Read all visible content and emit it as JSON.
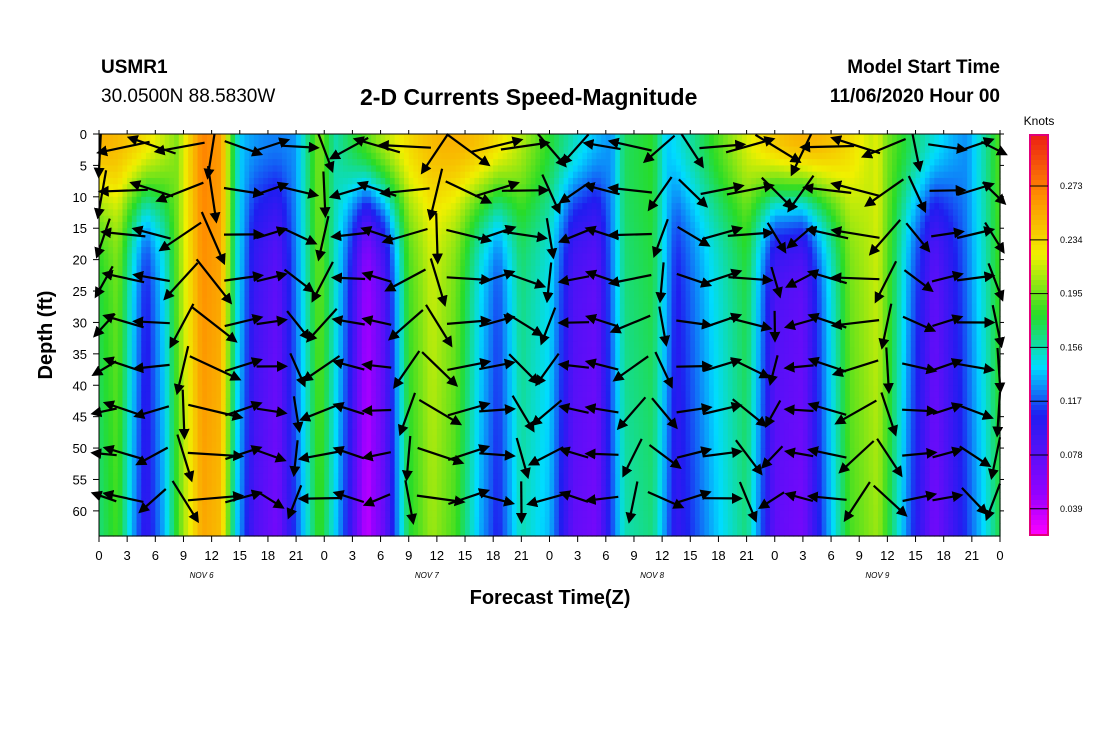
{
  "header": {
    "station_id": "USMR1",
    "coordinates": "30.0500N 88.5830W",
    "title": "2-D Currents Speed-Magnitude",
    "start_label": "Model Start Time",
    "start_value": "11/06/2020 Hour 00"
  },
  "colors": {
    "arrow": "#000000",
    "frame": "#000000",
    "colorbar_frame": "#e0007a"
  },
  "chart_data": {
    "type": "heatmap",
    "title": "2-D Currents Speed-Magnitude",
    "xlabel": "Forecast Time(Z)",
    "ylabel": "Depth (ft)",
    "x_tick_labels": [
      "0",
      "3",
      "6",
      "9",
      "12",
      "15",
      "18",
      "21",
      "0",
      "3",
      "6",
      "9",
      "12",
      "15",
      "18",
      "21",
      "0",
      "3",
      "6",
      "9",
      "12",
      "15",
      "18",
      "21",
      "0",
      "3",
      "6",
      "9",
      "12",
      "15",
      "18",
      "21",
      "0"
    ],
    "date_labels": [
      "NOV  6",
      "NOV  7",
      "NOV  8",
      "NOV  9"
    ],
    "x_range_hours": [
      0,
      96
    ],
    "y_tick_labels": [
      "0",
      "5",
      "10",
      "15",
      "20",
      "25",
      "30",
      "35",
      "40",
      "45",
      "50",
      "55",
      "60"
    ],
    "y_range_ft": [
      0,
      64
    ],
    "colorbar": {
      "unit": "Knots",
      "tick_labels": [
        "0.273",
        "0.234",
        "0.195",
        "0.156",
        "0.117",
        "0.078",
        "0.039"
      ],
      "range": [
        0.02,
        0.31
      ]
    },
    "speed_bands": [
      {
        "hour": 0.0,
        "speed": 0.18
      },
      {
        "hour": 2.0,
        "speed": 0.2
      },
      {
        "hour": 3.5,
        "speed": 0.15
      },
      {
        "hour": 5.0,
        "speed": 0.11
      },
      {
        "hour": 7.0,
        "speed": 0.15
      },
      {
        "hour": 9.0,
        "speed": 0.22
      },
      {
        "hour": 11.0,
        "speed": 0.27
      },
      {
        "hour": 13.0,
        "speed": 0.26
      },
      {
        "hour": 14.5,
        "speed": 0.16
      },
      {
        "hour": 16.5,
        "speed": 0.1
      },
      {
        "hour": 19.0,
        "speed": 0.08
      },
      {
        "hour": 21.0,
        "speed": 0.13
      },
      {
        "hour": 23.5,
        "speed": 0.2
      },
      {
        "hour": 26.5,
        "speed": 0.12
      },
      {
        "hour": 28.5,
        "speed": 0.05
      },
      {
        "hour": 30.5,
        "speed": 0.09
      },
      {
        "hour": 33.0,
        "speed": 0.19
      },
      {
        "hour": 35.5,
        "speed": 0.22
      },
      {
        "hour": 38.0,
        "speed": 0.2
      },
      {
        "hour": 40.5,
        "speed": 0.15
      },
      {
        "hour": 42.5,
        "speed": 0.12
      },
      {
        "hour": 45.0,
        "speed": 0.17
      },
      {
        "hour": 48.0,
        "speed": 0.15
      },
      {
        "hour": 50.5,
        "speed": 0.09
      },
      {
        "hour": 53.0,
        "speed": 0.08
      },
      {
        "hour": 56.0,
        "speed": 0.17
      },
      {
        "hour": 59.0,
        "speed": 0.18
      },
      {
        "hour": 61.5,
        "speed": 0.11
      },
      {
        "hour": 65.5,
        "speed": 0.15
      },
      {
        "hour": 69.0,
        "speed": 0.18
      },
      {
        "hour": 72.0,
        "speed": 0.09
      },
      {
        "hour": 75.0,
        "speed": 0.08
      },
      {
        "hour": 77.5,
        "speed": 0.14
      },
      {
        "hour": 80.0,
        "speed": 0.2
      },
      {
        "hour": 83.0,
        "speed": 0.22
      },
      {
        "hour": 86.5,
        "speed": 0.13
      },
      {
        "hour": 89.0,
        "speed": 0.08
      },
      {
        "hour": 92.0,
        "speed": 0.12
      },
      {
        "hour": 94.5,
        "speed": 0.16
      },
      {
        "hour": 96.0,
        "speed": 0.19
      }
    ],
    "surface_layer": {
      "depth_ft": 12,
      "speed": 0.25
    },
    "arrow_grid": {
      "hour_step": 3,
      "depth_step_ft": 7,
      "first_depth_ft": 2
    }
  }
}
